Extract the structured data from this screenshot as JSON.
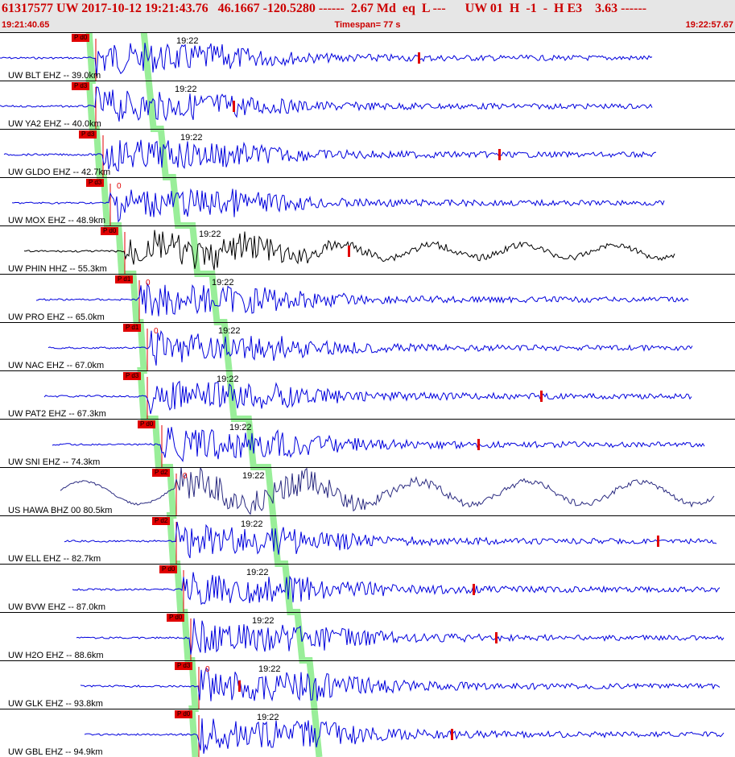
{
  "header": {
    "title": "61317577 UW 2017-10-12 19:21:43.76   46.1667 -120.5280 ------  2.67 Md  eq  L ---      UW 01  H  -1  -  H E3    3.63 ------",
    "start_time": "19:21:40.65",
    "timespan": "Timespan=  77 s",
    "end_time": "19:22:57.67"
  },
  "colors": {
    "header_bg": "#e6e6e6",
    "header_text": "#cc0000",
    "waveform_default": "#0000dd",
    "pick_marker": "#e00000",
    "moveout_band": "#99ee99"
  },
  "traces": [
    {
      "label": "UW BLT EHZ -- 39.0km",
      "pick": "P d0",
      "minute": "19:22",
      "zero": "",
      "color": "#0000dd",
      "p": 0.13
    },
    {
      "label": "UW YA2 EHZ -- 40.0km",
      "pick": "P d3",
      "minute": "19:22",
      "zero": "",
      "color": "#0000dd",
      "p": 0.13
    },
    {
      "label": "UW GLDO EHZ -- 42.7km",
      "pick": "P d3",
      "minute": "19:22",
      "zero": "",
      "color": "#0000dd",
      "p": 0.14
    },
    {
      "label": "UW MOX EHZ -- 48.9km",
      "pick": "P d3",
      "minute": "",
      "zero": "0",
      "color": "#0000dd",
      "p": 0.15
    },
    {
      "label": "UW PHIN HHZ -- 55.3km",
      "pick": "P d0",
      "minute": "19:22",
      "zero": "",
      "color": "#000000",
      "p": 0.17
    },
    {
      "label": "UW PRO EHZ -- 65.0km",
      "pick": "P d1",
      "minute": "19:22",
      "zero": "0",
      "color": "#0000dd",
      "p": 0.19
    },
    {
      "label": "UW NAC EHZ -- 67.0km",
      "pick": "P d1",
      "minute": "19:22",
      "zero": "0",
      "color": "#0000dd",
      "p": 0.2
    },
    {
      "label": "UW PAT2 EHZ -- 67.3km",
      "pick": "P d3",
      "minute": "19:22",
      "zero": "",
      "color": "#0000dd",
      "p": 0.2
    },
    {
      "label": "UW SNI EHZ -- 74.3km",
      "pick": "P d0",
      "minute": "19:22",
      "zero": "",
      "color": "#0000dd",
      "p": 0.22
    },
    {
      "label": "US HAWA BHZ 00 80.5km",
      "pick": "P d2",
      "minute": "19:22",
      "zero": "0",
      "color": "#2a2a80",
      "p": 0.24
    },
    {
      "label": "UW ELL EHZ -- 82.7km",
      "pick": "P d2",
      "minute": "19:22",
      "zero": "",
      "color": "#0000dd",
      "p": 0.24
    },
    {
      "label": "UW BVW EHZ -- 87.0km",
      "pick": "P d0",
      "minute": "19:22",
      "zero": "",
      "color": "#0000dd",
      "p": 0.25
    },
    {
      "label": "UW H2O EHZ -- 88.6km",
      "pick": "P d0",
      "minute": "19:22",
      "zero": "",
      "color": "#0000dd",
      "p": 0.26
    },
    {
      "label": "UW GLK EHZ -- 93.8km",
      "pick": "P d3",
      "minute": "19:22",
      "zero": "0",
      "color": "#0000dd",
      "p": 0.27
    },
    {
      "label": "UW GBL EHZ -- 94.9km",
      "pick": "P d0",
      "minute": "19:22",
      "zero": "",
      "color": "#0000dd",
      "p": 0.27
    }
  ]
}
